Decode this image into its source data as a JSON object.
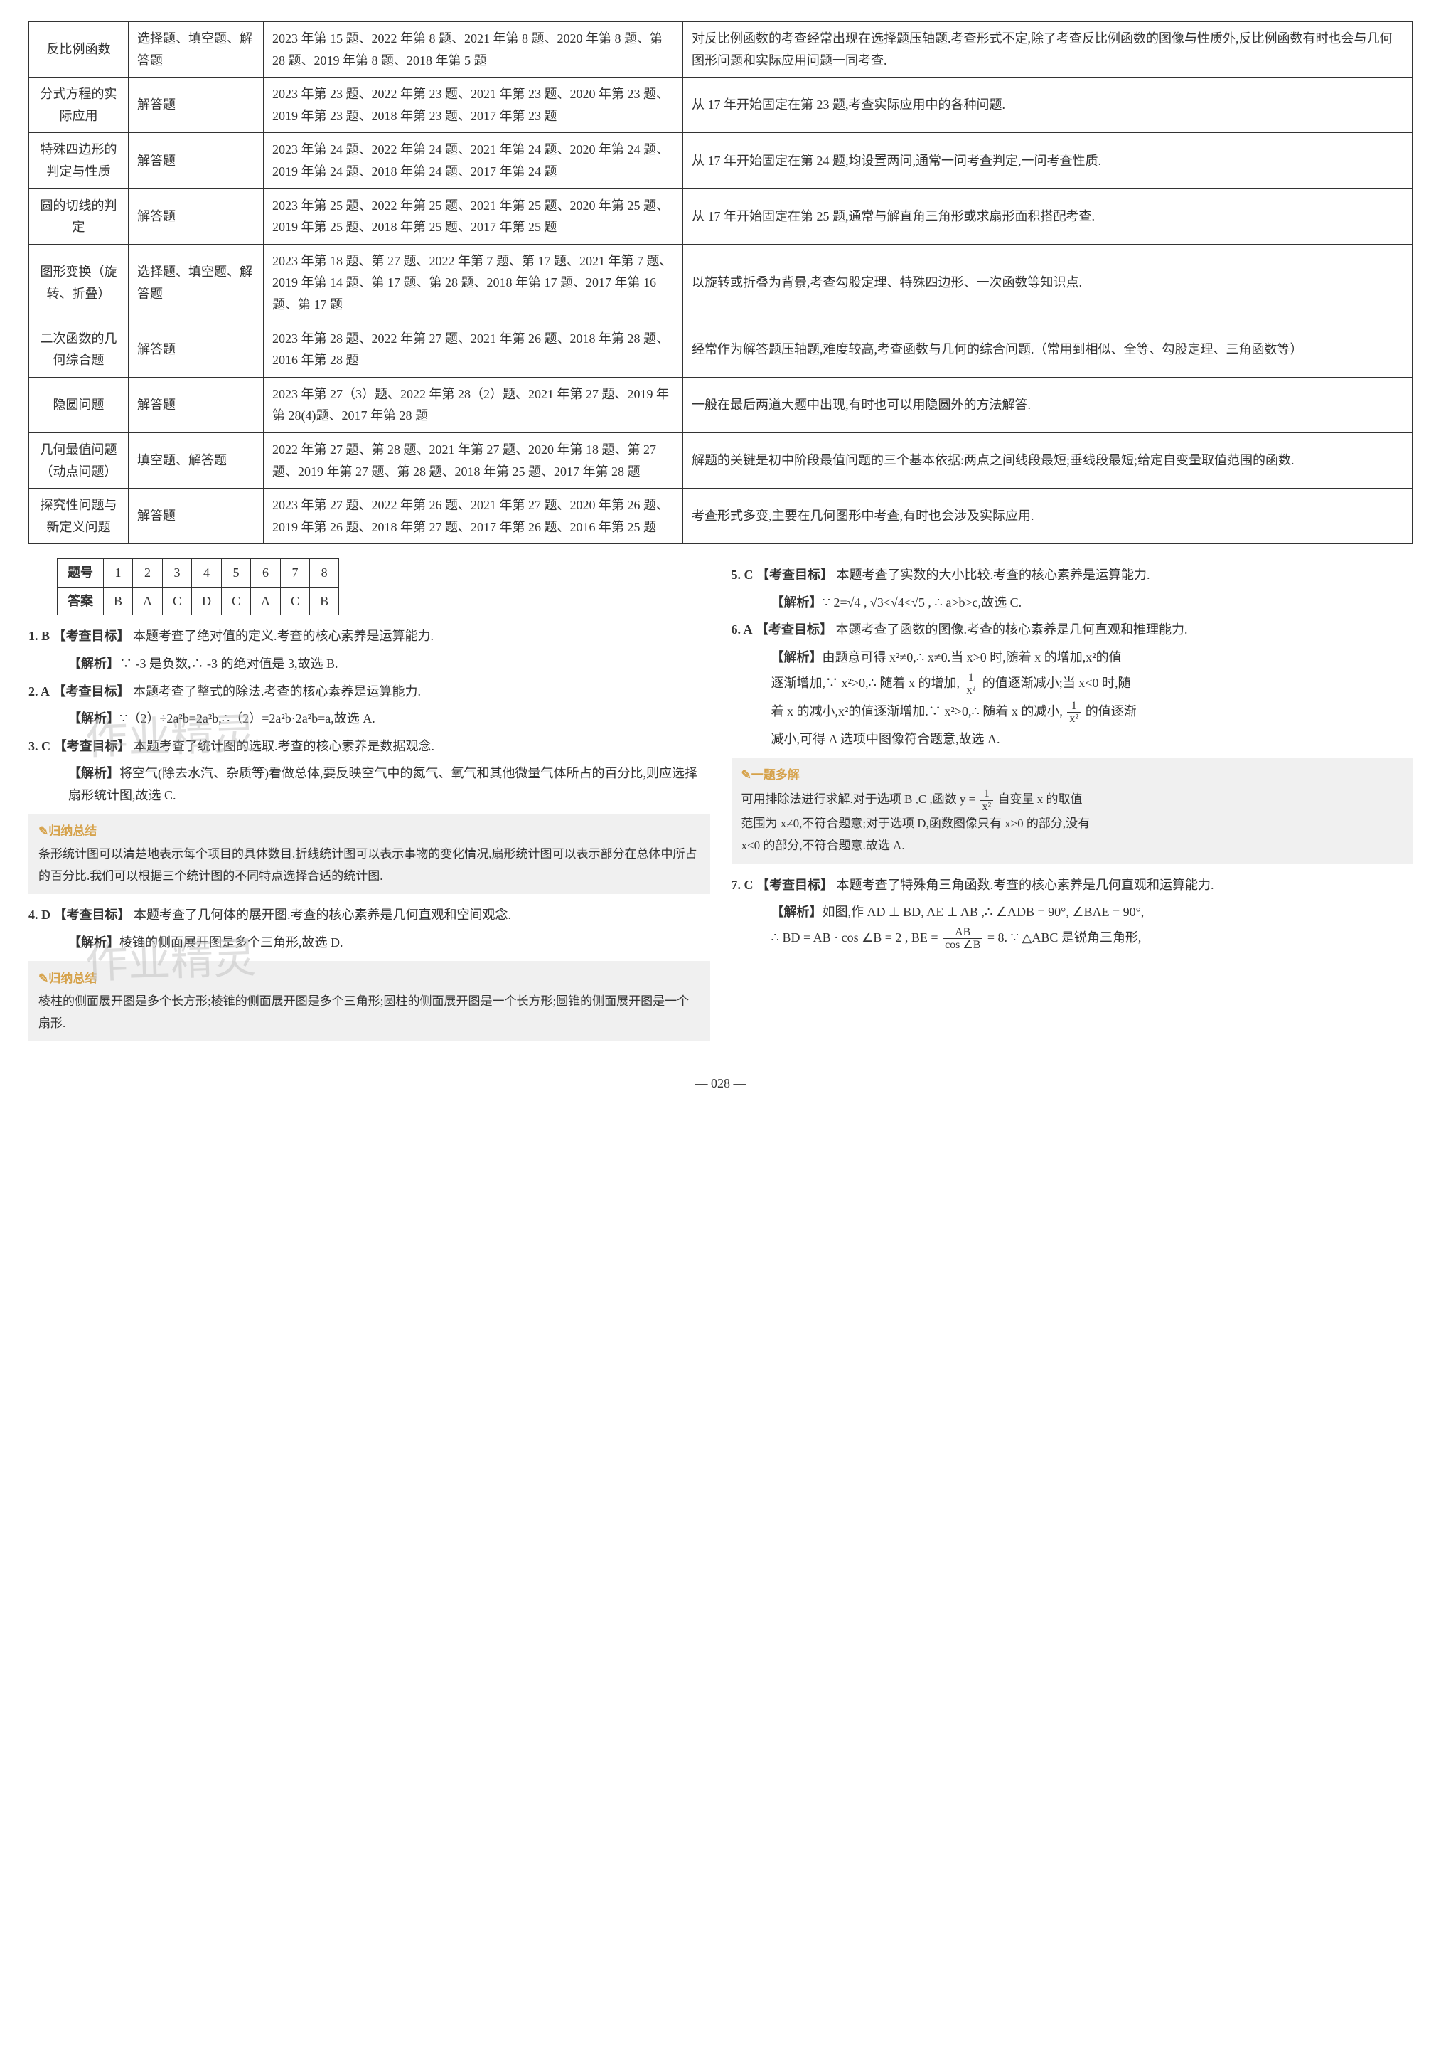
{
  "topicTable": {
    "rows": [
      {
        "topic": "反比例函数",
        "type": "选择题、填空题、解答题",
        "years": "2023 年第 15 题、2022 年第 8 题、2021 年第 8 题、2020 年第 8 题、第 28 题、2019 年第 8 题、2018 年第 5 题",
        "note": "对反比例函数的考查经常出现在选择题压轴题.考查形式不定,除了考查反比例函数的图像与性质外,反比例函数有时也会与几何图形问题和实际应用问题一同考查."
      },
      {
        "topic": "分式方程的实际应用",
        "type": "解答题",
        "years": "2023 年第 23 题、2022 年第 23 题、2021 年第 23 题、2020 年第 23 题、2019 年第 23 题、2018 年第 23 题、2017 年第 23 题",
        "note": "从 17 年开始固定在第 23 题,考查实际应用中的各种问题."
      },
      {
        "topic": "特殊四边形的判定与性质",
        "type": "解答题",
        "years": "2023 年第 24 题、2022 年第 24 题、2021 年第 24 题、2020 年第 24 题、2019 年第 24 题、2018 年第 24 题、2017 年第 24 题",
        "note": "从 17 年开始固定在第 24 题,均设置两问,通常一问考查判定,一问考查性质."
      },
      {
        "topic": "圆的切线的判定",
        "type": "解答题",
        "years": "2023 年第 25 题、2022 年第 25 题、2021 年第 25 题、2020 年第 25 题、2019 年第 25 题、2018 年第 25 题、2017 年第 25 题",
        "note": "从 17 年开始固定在第 25 题,通常与解直角三角形或求扇形面积搭配考查."
      },
      {
        "topic": "图形变换（旋转、折叠）",
        "type": "选择题、填空题、解答题",
        "years": "2023 年第 18 题、第 27 题、2022 年第 7 题、第 17 题、2021 年第 7 题、2019 年第 14 题、第 17 题、第 28 题、2018 年第 17 题、2017 年第 16 题、第 17 题",
        "note": "以旋转或折叠为背景,考查勾股定理、特殊四边形、一次函数等知识点."
      },
      {
        "topic": "二次函数的几何综合题",
        "type": "解答题",
        "years": "2023 年第 28 题、2022 年第 27 题、2021 年第 26 题、2018 年第 28 题、2016 年第 28 题",
        "note": "经常作为解答题压轴题,难度较高,考查函数与几何的综合问题.（常用到相似、全等、勾股定理、三角函数等）"
      },
      {
        "topic": "隐圆问题",
        "type": "解答题",
        "years": "2023 年第 27（3）题、2022 年第 28（2）题、2021 年第 27 题、2019 年第 28(4)题、2017 年第 28 题",
        "note": "一般在最后两道大题中出现,有时也可以用隐圆外的方法解答."
      },
      {
        "topic": "几何最值问题（动点问题）",
        "type": "填空题、解答题",
        "years": "2022 年第 27 题、第 28 题、2021 年第 27 题、2020 年第 18 题、第 27 题、2019 年第 27 题、第 28 题、2018 年第 25 题、2017 年第 28 题",
        "note": "解题的关键是初中阶段最值问题的三个基本依据:两点之间线段最短;垂线段最短;给定自变量取值范围的函数."
      },
      {
        "topic": "探究性问题与新定义问题",
        "type": "解答题",
        "years": "2023 年第 27 题、2022 年第 26 题、2021 年第 27 题、2020 年第 26 题、2019 年第 26 题、2018 年第 27 题、2017 年第 26 题、2016 年第 25 题",
        "note": "考查形式多变,主要在几何图形中考查,有时也会涉及实际应用."
      }
    ]
  },
  "answerTable": {
    "header": [
      "题号",
      "1",
      "2",
      "3",
      "4",
      "5",
      "6",
      "7",
      "8"
    ],
    "row": [
      "答案",
      "B",
      "A",
      "C",
      "D",
      "C",
      "A",
      "C",
      "B"
    ]
  },
  "q1": {
    "num": "1. B",
    "target": "【考查目标】",
    "targetText": "本题考查了绝对值的定义.考查的核心素养是运算能力.",
    "parse": "【解析】",
    "parseText": "∵ -3 是负数,∴ -3 的绝对值是 3,故选 B."
  },
  "q2": {
    "num": "2. A",
    "target": "【考查目标】",
    "targetText": "本题考查了整式的除法.考查的核心素养是运算能力.",
    "parse": "【解析】",
    "parseText": "∵（2）÷2a²b=2a²b,∴（2）=2a²b·2a²b=a,故选 A."
  },
  "q3": {
    "num": "3. C",
    "target": "【考查目标】",
    "targetText": "本题考查了统计图的选取.考查的核心素养是数据观念.",
    "parse": "【解析】",
    "parseText": "将空气(除去水汽、杂质等)看做总体,要反映空气中的氮气、氧气和其他微量气体所占的百分比,则应选择扇形统计图,故选 C."
  },
  "summary1": {
    "title": "✎归纳总结",
    "text": "条形统计图可以清楚地表示每个项目的具体数目,折线统计图可以表示事物的变化情况,扇形统计图可以表示部分在总体中所占的百分比.我们可以根据三个统计图的不同特点选择合适的统计图."
  },
  "q4": {
    "num": "4. D",
    "target": "【考查目标】",
    "targetText": "本题考查了几何体的展开图.考查的核心素养是几何直观和空间观念.",
    "parse": "【解析】",
    "parseText": "棱锥的侧面展开图是多个三角形,故选 D."
  },
  "summary2": {
    "title": "✎归纳总结",
    "text": "棱柱的侧面展开图是多个长方形;棱锥的侧面展开图是多个三角形;圆柱的侧面展开图是一个长方形;圆锥的侧面展开图是一个扇形."
  },
  "q5": {
    "num": "5. C",
    "target": "【考查目标】",
    "targetText": "本题考查了实数的大小比较.考查的核心素养是运算能力.",
    "parse": "【解析】",
    "parseText": "∵ 2=√4 , √3<√4<√5 , ∴ a>b>c,故选 C."
  },
  "q6": {
    "num": "6. A",
    "target": "【考查目标】",
    "targetText": "本题考查了函数的图像.考查的核心素养是几何直观和推理能力.",
    "parse": "【解析】",
    "parseLine1": "由题意可得 x²≠0,∴ x≠0.当 x>0 时,随着 x 的增加,x²的值",
    "parseLine2": "逐渐增加,∵ x²>0,∴ 随着 x 的增加,",
    "parseLine2b": "的值逐渐减小;当 x<0 时,随",
    "parseLine3": "着 x 的减小,x²的值逐渐增加.∵ x²>0,∴ 随着 x 的减小,",
    "parseLine3b": "的值逐渐",
    "parseLine4": "减小,可得 A 选项中图像符合题意,故选 A."
  },
  "multi1": {
    "title": "✎一题多解",
    "line1": "可用排除法进行求解.对于选项 B ,C ,函数 y =",
    "line1b": "自变量 x 的取值",
    "line2": "范围为 x≠0,不符合题意;对于选项 D,函数图像只有 x>0 的部分,没有",
    "line3": "x<0 的部分,不符合题意.故选 A."
  },
  "q7": {
    "num": "7. C",
    "target": "【考查目标】",
    "targetText": "本题考查了特殊角三角函数.考查的核心素养是几何直观和运算能力.",
    "parse": "【解析】",
    "parseLine1": "如图,作 AD ⊥ BD, AE ⊥ AB ,∴ ∠ADB = 90°, ∠BAE = 90°,",
    "parseLine2a": "∴ BD = AB · cos ∠B = 2 , BE =",
    "fracTop": "AB",
    "fracBot": "cos ∠B",
    "parseLine2b": "= 8. ∵ △ABC 是锐角三角形,"
  },
  "pageNumber": "— 028 —",
  "watermark": "作业精灵"
}
